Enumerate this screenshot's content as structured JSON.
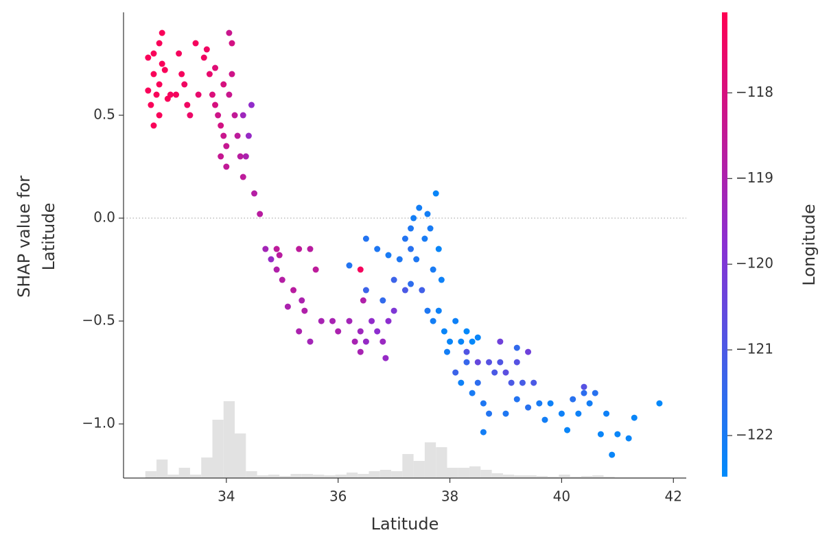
{
  "chart_data": {
    "type": "scatter",
    "xlabel": "Latitude",
    "ylabel": [
      "SHAP value for",
      "Latitude"
    ],
    "xlim": [
      32.16,
      42.23
    ],
    "ylim": [
      -1.263,
      1.0
    ],
    "xticks": [
      34,
      36,
      38,
      40,
      42
    ],
    "yticks": [
      0.5,
      {
        "value": 0,
        "label": "0.0"
      },
      {
        "value": -0.5,
        "label": "−0.5"
      },
      {
        "value": -1.0,
        "label": "−1.0"
      }
    ],
    "reference_line": 0,
    "x": [
      32.7,
      32.8,
      32.85,
      32.6,
      32.65,
      32.7,
      32.75,
      32.8,
      32.9,
      32.95,
      32.7,
      32.8,
      32.85,
      32.6,
      33.0,
      33.1,
      33.15,
      33.2,
      33.25,
      33.3,
      33.35,
      33.45,
      33.5,
      33.6,
      33.65,
      33.7,
      33.75,
      33.8,
      33.85,
      33.9,
      33.95,
      34.0,
      34.05,
      34.1,
      34.1,
      34.05,
      33.95,
      34.15,
      34.2,
      34.25,
      33.8,
      33.9,
      34.0,
      34.3,
      34.4,
      34.45,
      34.35,
      34.3,
      34.5,
      34.6,
      34.7,
      34.9,
      34.95,
      35.3,
      34.8,
      34.9,
      35.0,
      35.2,
      35.35,
      35.4,
      35.6,
      35.1,
      35.3,
      35.5,
      35.7,
      35.9,
      36.0,
      36.2,
      36.3,
      36.4,
      36.5,
      36.6,
      36.7,
      36.8,
      36.9,
      37.0,
      36.85,
      36.4,
      36.45,
      35.5,
      36.4,
      36.2,
      36.5,
      36.7,
      36.9,
      37.1,
      37.2,
      37.3,
      37.35,
      37.45,
      37.55,
      37.6,
      37.65,
      37.75,
      37.8,
      37.85,
      37.7,
      37.4,
      37.3,
      36.8,
      37.2,
      37.0,
      37.5,
      37.6,
      37.7,
      37.8,
      37.9,
      37.95,
      38.0,
      38.1,
      38.2,
      38.3,
      38.4,
      38.5,
      38.1,
      38.2,
      38.3,
      38.4,
      38.5,
      38.6,
      38.7,
      38.8,
      38.9,
      39.0,
      39.1,
      39.2,
      39.3,
      39.4,
      39.5,
      38.9,
      38.6,
      38.7,
      39.0,
      39.2,
      39.4,
      39.6,
      39.7,
      39.8,
      40.0,
      40.1,
      40.2,
      40.3,
      40.4,
      40.5,
      40.6,
      40.7,
      40.8,
      40.9,
      41.0,
      41.2,
      41.3,
      41.75,
      40.4,
      39.2,
      38.3,
      38.5,
      36.5,
      37.3
    ],
    "values": [
      0.8,
      0.85,
      0.9,
      0.62,
      0.55,
      0.7,
      0.6,
      0.5,
      0.72,
      0.58,
      0.45,
      0.65,
      0.75,
      0.78,
      0.6,
      0.6,
      0.8,
      0.7,
      0.65,
      0.55,
      0.5,
      0.85,
      0.6,
      0.78,
      0.82,
      0.7,
      0.6,
      0.55,
      0.5,
      0.45,
      0.4,
      0.35,
      0.6,
      0.7,
      0.85,
      0.9,
      0.65,
      0.5,
      0.4,
      0.3,
      0.73,
      0.3,
      0.25,
      0.5,
      0.4,
      0.55,
      0.3,
      0.2,
      0.12,
      0.02,
      -0.15,
      -0.15,
      -0.18,
      -0.15,
      -0.2,
      -0.25,
      -0.3,
      -0.35,
      -0.4,
      -0.45,
      -0.25,
      -0.43,
      -0.55,
      -0.6,
      -0.5,
      -0.5,
      -0.55,
      -0.5,
      -0.6,
      -0.55,
      -0.6,
      -0.5,
      -0.55,
      -0.6,
      -0.5,
      -0.45,
      -0.68,
      -0.65,
      -0.4,
      -0.15,
      -0.25,
      -0.23,
      -0.1,
      -0.15,
      -0.18,
      -0.2,
      -0.1,
      -0.05,
      0.0,
      0.05,
      -0.1,
      0.02,
      -0.05,
      0.12,
      -0.15,
      -0.3,
      -0.25,
      -0.2,
      -0.15,
      -0.4,
      -0.35,
      -0.3,
      -0.35,
      -0.45,
      -0.5,
      -0.45,
      -0.55,
      -0.65,
      -0.6,
      -0.5,
      -0.6,
      -0.55,
      -0.6,
      -0.58,
      -0.75,
      -0.8,
      -0.7,
      -0.85,
      -0.8,
      -0.9,
      -0.7,
      -0.75,
      -0.7,
      -0.75,
      -0.8,
      -0.7,
      -0.8,
      -0.65,
      -0.8,
      -0.6,
      -1.04,
      -0.95,
      -0.95,
      -0.88,
      -0.92,
      -0.9,
      -0.98,
      -0.9,
      -0.95,
      -1.03,
      -0.88,
      -0.95,
      -0.85,
      -0.9,
      -0.85,
      -1.05,
      -0.95,
      -1.15,
      -1.05,
      -1.07,
      -0.97,
      -0.9,
      -0.82,
      -0.63,
      -0.65,
      -0.7,
      -0.35,
      -0.32
    ],
    "color_label": "Longitude",
    "color_values": [
      -117.2,
      -117.2,
      -117.2,
      -117.2,
      -117.2,
      -117.2,
      -117.2,
      -117.2,
      -117.2,
      -117.2,
      -117.2,
      -117.2,
      -117.2,
      -117.2,
      -117.3,
      -117.3,
      -117.3,
      -117.3,
      -117.4,
      -117.4,
      -117.5,
      -117.3,
      -117.6,
      -117.4,
      -117.4,
      -117.6,
      -117.9,
      -118.0,
      -118.2,
      -118.1,
      -118.3,
      -118.4,
      -118.3,
      -118.2,
      -118.1,
      -118.3,
      -118.0,
      -118.5,
      -118.6,
      -118.7,
      -117.8,
      -118.4,
      -118.5,
      -119.3,
      -119.5,
      -119.6,
      -119.0,
      -118.6,
      -118.8,
      -118.7,
      -119.2,
      -118.6,
      -118.7,
      -118.6,
      -119.5,
      -118.9,
      -118.8,
      -118.7,
      -119.0,
      -118.9,
      -118.6,
      -119.0,
      -119.0,
      -119.2,
      -119.1,
      -119.1,
      -119.0,
      -119.2,
      -119.1,
      -119.3,
      -119.5,
      -119.6,
      -119.7,
      -119.4,
      -119.7,
      -120.0,
      -119.5,
      -119.1,
      -118.9,
      -118.7,
      -117.3,
      -121.8,
      -121.8,
      -121.9,
      -122.0,
      -121.9,
      -121.8,
      -121.9,
      -122.1,
      -122.1,
      -122.0,
      -122.1,
      -122.0,
      -122.3,
      -122.3,
      -122.2,
      -122.0,
      -121.9,
      -121.7,
      -121.5,
      -121.0,
      -121.3,
      -121.2,
      -121.9,
      -122.1,
      -122.2,
      -122.3,
      -122.1,
      -122.3,
      -122.2,
      -122.3,
      -122.4,
      -122.4,
      -122.3,
      -121.3,
      -122.2,
      -121.4,
      -122.0,
      -121.6,
      -121.9,
      -120.8,
      -121.0,
      -120.9,
      -120.7,
      -121.0,
      -120.8,
      -121.1,
      -120.3,
      -121.0,
      -120.3,
      -122.1,
      -121.8,
      -121.9,
      -121.8,
      -121.7,
      -122.0,
      -122.1,
      -122.2,
      -122.2,
      -122.3,
      -121.7,
      -122.2,
      -121.6,
      -122.1,
      -121.7,
      -122.3,
      -122.2,
      -122.3,
      -122.3,
      -122.3,
      -122.3,
      -122.4,
      -120.8,
      -121.5,
      -120.9,
      -120.5,
      -121.3,
      -121.6
    ],
    "clim": [
      -122.48,
      -117.06
    ],
    "cticks": [
      {
        "value": -118,
        "label": "−118"
      },
      {
        "value": -119,
        "label": "−119"
      },
      {
        "value": -120,
        "label": "−120"
      },
      {
        "value": -121,
        "label": "−121"
      },
      {
        "value": -122,
        "label": "−122"
      }
    ],
    "colormap": [
      "#008bfb",
      "#8a2fd2",
      "#ff0052"
    ],
    "histogram": {
      "color": "#e2e2e2",
      "bins": [
        32.55,
        32.75,
        32.95,
        33.15,
        33.35,
        33.55,
        33.75,
        33.95,
        34.15,
        34.35,
        34.55,
        34.75,
        34.95,
        35.15,
        35.35,
        35.55,
        35.75,
        35.95,
        36.15,
        36.35,
        36.55,
        36.75,
        36.95,
        37.15,
        37.35,
        37.55,
        37.75,
        37.95,
        38.15,
        38.35,
        38.55,
        38.75,
        38.95,
        39.15,
        39.35,
        39.55,
        39.75,
        39.95,
        40.15,
        40.35,
        40.55,
        40.75,
        40.95,
        41.15,
        41.35,
        41.55,
        41.75,
        41.95
      ],
      "counts": [
        10,
        27,
        5,
        15,
        5,
        30,
        85,
        112,
        65,
        10,
        4,
        5,
        3,
        6,
        6,
        5,
        4,
        5,
        8,
        6,
        10,
        12,
        10,
        35,
        25,
        52,
        45,
        15,
        15,
        17,
        12,
        7,
        5,
        4,
        4,
        3,
        2,
        5,
        2,
        3,
        4,
        2,
        1,
        1,
        1,
        1,
        1
      ]
    }
  }
}
